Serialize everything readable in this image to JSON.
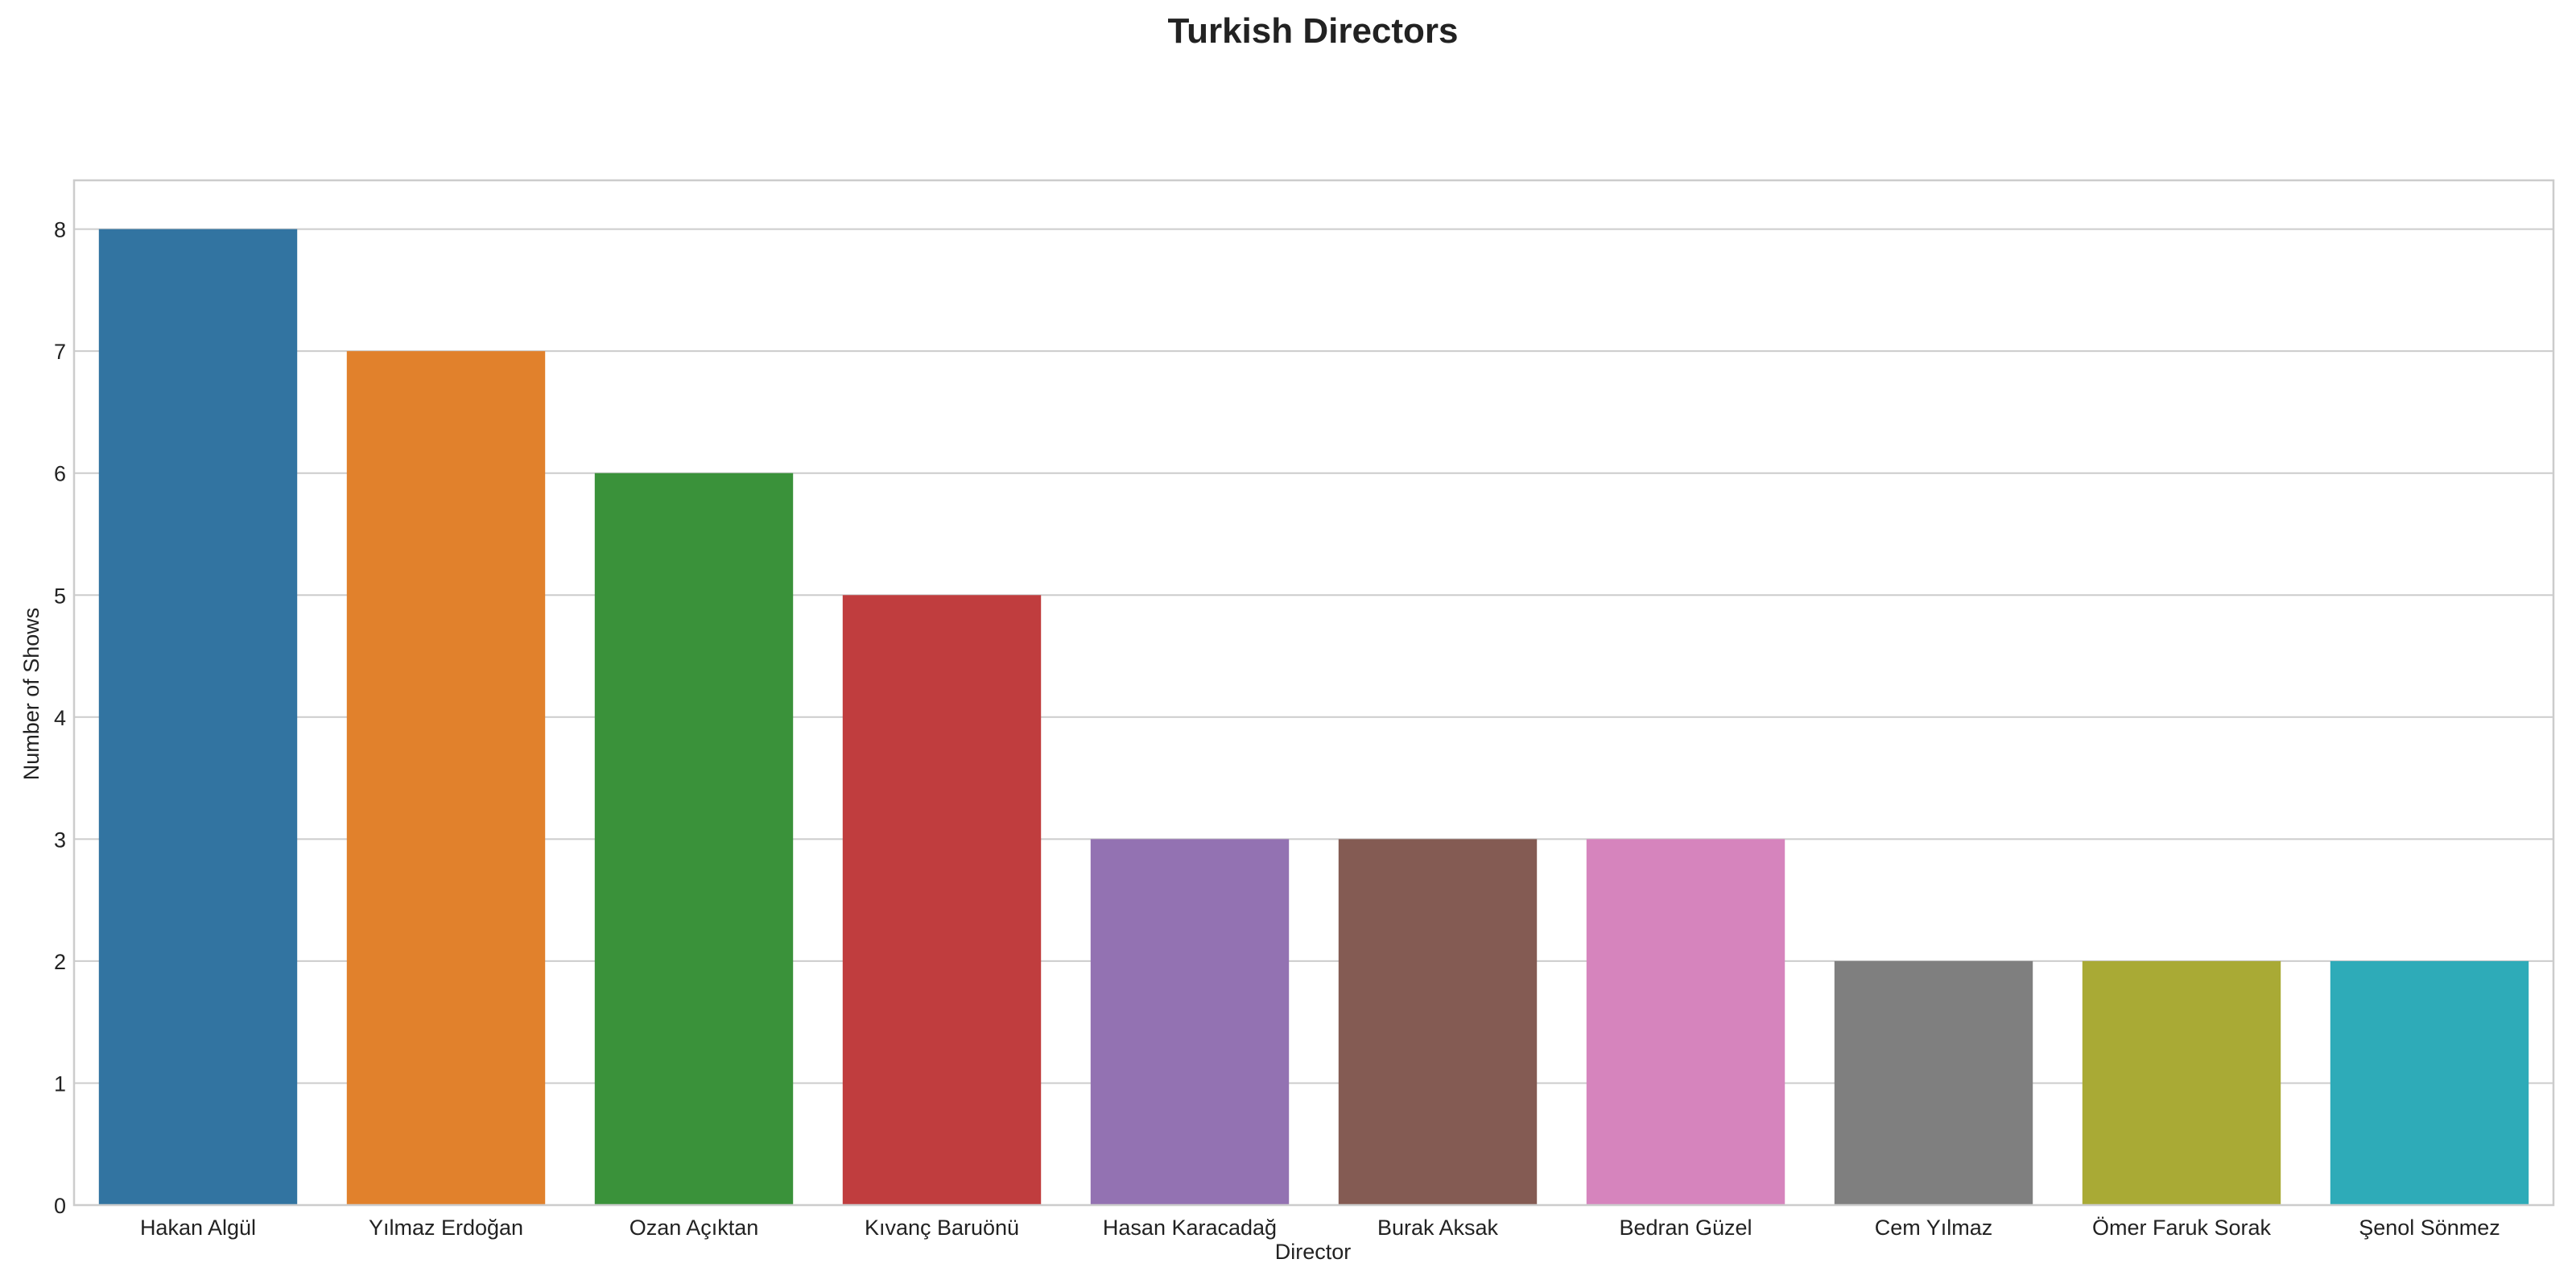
{
  "chart_data": {
    "type": "bar",
    "title": "Turkish Directors",
    "xlabel": "Director",
    "ylabel": "Number of Shows",
    "categories": [
      "Hakan Algül",
      "Yılmaz Erdoğan",
      "Ozan Açıktan",
      "Kıvanç Baruönü",
      "Hasan Karacadağ",
      "Burak Aksak",
      "Bedran Güzel",
      "Cem Yılmaz",
      "Ömer Faruk Sorak",
      "Şenol Sönmez"
    ],
    "values": [
      8,
      7,
      6,
      5,
      3,
      3,
      3,
      2,
      2,
      2
    ],
    "colors": [
      "#3274a1",
      "#e1812c",
      "#3a923a",
      "#c03d3e",
      "#9372b2",
      "#845b53",
      "#d684bd",
      "#7f7f7f",
      "#a9aa35",
      "#2eabb8"
    ],
    "yticks": [
      0,
      1,
      2,
      3,
      4,
      5,
      6,
      7,
      8
    ],
    "ylim": [
      0,
      8.4
    ],
    "grid": true,
    "legend": "none"
  }
}
